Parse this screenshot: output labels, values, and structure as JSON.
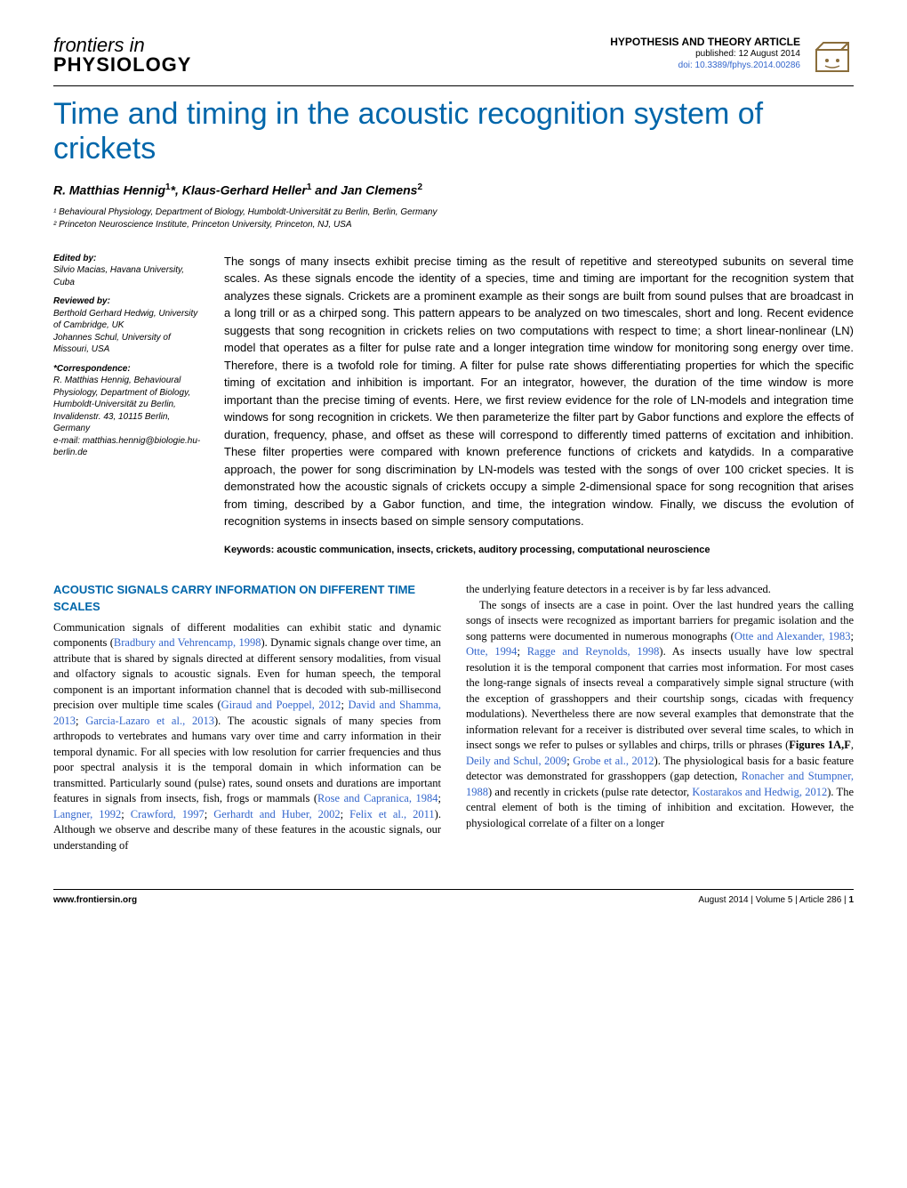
{
  "journal": {
    "top": "frontiers in",
    "bottom": "PHYSIOLOGY"
  },
  "header": {
    "article_type": "HYPOTHESIS AND THEORY ARTICLE",
    "published": "published: 12 August 2014",
    "doi": "doi: 10.3389/fphys.2014.00286"
  },
  "title": "Time and timing in the acoustic recognition system of crickets",
  "authors_html": "R. Matthias Hennig<span class='sup'>1</span>*, Klaus-Gerhard Heller<span class='sup'>1</span> and Jan Clemens<span class='sup'>2</span>",
  "affiliations": {
    "a1": "¹ Behavioural Physiology, Department of Biology, Humboldt-Universität zu Berlin, Berlin, Germany",
    "a2": "² Princeton Neuroscience Institute, Princeton University, Princeton, NJ, USA"
  },
  "sidebar": {
    "edited_by_h": "Edited by:",
    "edited_by": "Silvio Macias, Havana University, Cuba",
    "reviewed_by_h": "Reviewed by:",
    "reviewed_by1": "Berthold Gerhard Hedwig, University of Cambridge, UK",
    "reviewed_by2": "Johannes Schul, University of Missouri, USA",
    "corr_h": "*Correspondence:",
    "corr": "R. Matthias Hennig, Behavioural Physiology, Department of Biology, Humboldt-Universität zu Berlin, Invalidenstr. 43, 10115 Berlin, Germany",
    "corr_email": "e-mail: matthias.hennig@biologie.hu-berlin.de"
  },
  "abstract": "The songs of many insects exhibit precise timing as the result of repetitive and stereotyped subunits on several time scales. As these signals encode the identity of a species, time and timing are important for the recognition system that analyzes these signals. Crickets are a prominent example as their songs are built from sound pulses that are broadcast in a long trill or as a chirped song. This pattern appears to be analyzed on two timescales, short and long. Recent evidence suggests that song recognition in crickets relies on two computations with respect to time; a short linear-nonlinear (LN) model that operates as a filter for pulse rate and a longer integration time window for monitoring song energy over time. Therefore, there is a twofold role for timing. A filter for pulse rate shows differentiating properties for which the specific timing of excitation and inhibition is important. For an integrator, however, the duration of the time window is more important than the precise timing of events. Here, we first review evidence for the role of LN-models and integration time windows for song recognition in crickets. We then parameterize the filter part by Gabor functions and explore the effects of duration, frequency, phase, and offset as these will correspond to differently timed patterns of excitation and inhibition. These filter properties were compared with known preference functions of crickets and katydids. In a comparative approach, the power for song discrimination by LN-models was tested with the songs of over 100 cricket species. It is demonstrated how the acoustic signals of crickets occupy a simple 2-dimensional space for song recognition that arises from timing, described by a Gabor function, and time, the integration window. Finally, we discuss the evolution of recognition systems in insects based on simple sensory computations.",
  "keywords": "Keywords: acoustic communication, insects, crickets, auditory processing, computational neuroscience",
  "section1_heading": "ACOUSTIC SIGNALS CARRY INFORMATION ON DIFFERENT TIME SCALES",
  "body": {
    "col1_p1a": "Communication signals of different modalities can exhibit static and dynamic components (",
    "col1_c1": "Bradbury and Vehrencamp, 1998",
    "col1_p1b": "). Dynamic signals change over time, an attribute that is shared by signals directed at different sensory modalities, from visual and olfactory signals to acoustic signals. Even for human speech, the temporal component is an important information channel that is decoded with sub-millisecond precision over multiple time scales (",
    "col1_c2": "Giraud and Poeppel, 2012",
    "col1_p1c": "; ",
    "col1_c3": "David and Shamma, 2013",
    "col1_p1d": "; ",
    "col1_c4": "Garcia-Lazaro et al., 2013",
    "col1_p1e": "). The acoustic signals of many species from arthropods to vertebrates and humans vary over time and carry information in their temporal dynamic. For all species with low resolution for carrier frequencies and thus poor spectral analysis it is the temporal domain in which information can be transmitted. Particularly sound (pulse) rates, sound onsets and durations are important features in signals from insects, fish, frogs or mammals (",
    "col1_c5": "Rose and Capranica, 1984",
    "col1_p1f": "; ",
    "col1_c6": "Langner, 1992",
    "col1_p1g": "; ",
    "col1_c7": "Crawford, 1997",
    "col1_p1h": "; ",
    "col1_c8": "Gerhardt and Huber, 2002",
    "col1_p1i": "; ",
    "col1_c9": "Felix et al., 2011",
    "col1_p1j": "). Although we observe and describe many of these features in the acoustic signals, our understanding of",
    "col2_p1": "the underlying feature detectors in a receiver is by far less advanced.",
    "col2_p2a": "The songs of insects are a case in point. Over the last hundred years the calling songs of insects were recognized as important barriers for pregamic isolation and the song patterns were documented in numerous monographs (",
    "col2_c1": "Otte and Alexander, 1983",
    "col2_p2b": "; ",
    "col2_c2": "Otte, 1994",
    "col2_p2c": "; ",
    "col2_c3": "Ragge and Reynolds, 1998",
    "col2_p2d": "). As insects usually have low spectral resolution it is the temporal component that carries most information. For most cases the long-range signals of insects reveal a comparatively simple signal structure (with the exception of grasshoppers and their courtship songs, cicadas with frequency modulations). Nevertheless there are now several examples that demonstrate that the information relevant for a receiver is distributed over several time scales, to which in insect songs we refer to pulses or syllables and chirps, trills or phrases (",
    "col2_fig": "Figures 1A,F",
    "col2_p2e": ", ",
    "col2_c4": "Deily and Schul, 2009",
    "col2_p2f": "; ",
    "col2_c5": "Grobe et al., 2012",
    "col2_p2g": "). The physiological basis for a basic feature detector was demonstrated for grasshoppers (gap detection, ",
    "col2_c6": "Ronacher and Stumpner, 1988",
    "col2_p2h": ") and recently in crickets (pulse rate detector, ",
    "col2_c7": "Kostarakos and Hedwig, 2012",
    "col2_p2i": "). The central element of both is the timing of inhibition and excitation. However, the physiological correlate of a filter on a longer"
  },
  "footer": {
    "url": "www.frontiersin.org",
    "issue": "August 2014 | Volume 5 | Article 286 | ",
    "page": "1"
  },
  "colors": {
    "title_blue": "#0066aa",
    "link_blue": "#3366cc"
  }
}
